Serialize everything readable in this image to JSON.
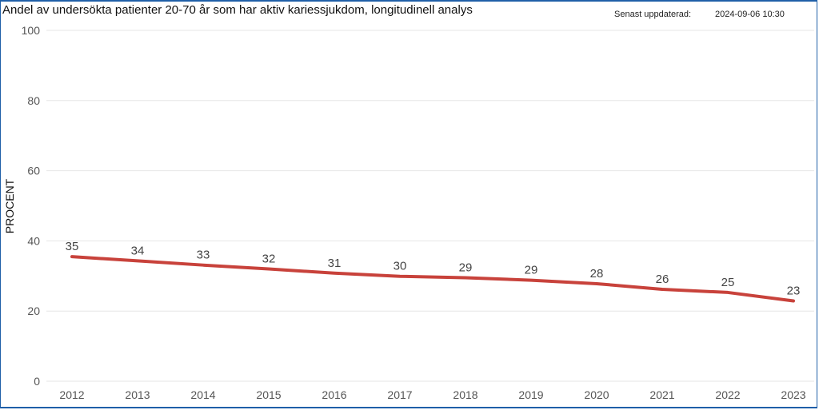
{
  "header": {
    "title": "Andel av undersökta patienter 20-70 år som har aktiv kariessjukdom, longitudinell analys",
    "updated_label": "Senast uppdaterad:",
    "updated_value": "2024-09-06 10:30"
  },
  "chart_data": {
    "type": "line",
    "title": "Andel av undersökta patienter 20-70 år som har aktiv kariessjukdom, longitudinell analys",
    "xlabel": "",
    "ylabel": "PROCENT",
    "categories": [
      "2012",
      "2013",
      "2014",
      "2015",
      "2016",
      "2017",
      "2018",
      "2019",
      "2020",
      "2021",
      "2022",
      "2023"
    ],
    "values": [
      35.5,
      34.3,
      33.1,
      32.0,
      30.8,
      29.9,
      29.5,
      28.8,
      27.8,
      26.2,
      25.3,
      22.9
    ],
    "data_labels": [
      "35",
      "34",
      "33",
      "32",
      "31",
      "30",
      "29",
      "29",
      "28",
      "26",
      "25",
      "23"
    ],
    "ylim": [
      0,
      100
    ],
    "yticks": [
      0,
      20,
      40,
      60,
      80,
      100
    ],
    "grid": true,
    "series_color": "#c8423b",
    "grid_color": "#e6e6e6",
    "legend": "none"
  }
}
